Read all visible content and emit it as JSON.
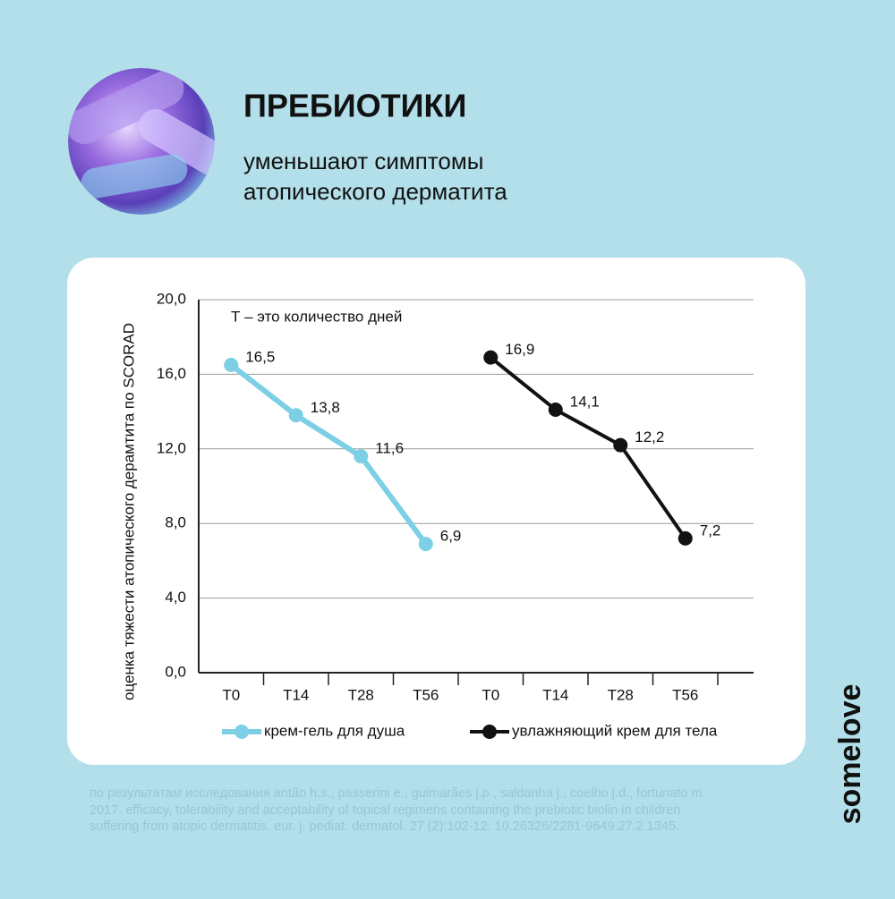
{
  "header": {
    "title": "ПРЕБИОТИКИ",
    "subtitle": [
      "уменьшают симптомы",
      "атопического дерматита"
    ]
  },
  "chart_data": {
    "type": "line",
    "annotation": "Т – это количество дней",
    "y_label": "оценка тяжести атопического дерамтита по SCORAD",
    "categories": [
      "T0",
      "T14",
      "T28",
      "T56",
      "T0",
      "T14",
      "T28",
      "T56"
    ],
    "series": [
      {
        "name": "крем-гель для душа",
        "color": "#7dcfe6",
        "values": [
          16.5,
          13.8,
          11.6,
          6.9,
          null,
          null,
          null,
          null
        ],
        "value_labels": [
          "16,5",
          "13,8",
          "11,6",
          "6,9",
          null,
          null,
          null,
          null
        ]
      },
      {
        "name": "увлажняющий крем для тела",
        "color": "#111111",
        "values": [
          null,
          null,
          null,
          null,
          16.9,
          14.1,
          12.2,
          7.2
        ],
        "value_labels": [
          null,
          null,
          null,
          null,
          "16,9",
          "14,1",
          "12,2",
          "7,2"
        ]
      }
    ],
    "ylim": [
      0,
      20
    ],
    "yticks": [
      {
        "value": 0,
        "label": "0,0"
      },
      {
        "value": 4,
        "label": "4,0"
      },
      {
        "value": 8,
        "label": "8,0"
      },
      {
        "value": 12,
        "label": "12,0"
      },
      {
        "value": 16,
        "label": "16,0"
      },
      {
        "value": 20,
        "label": "20,0"
      }
    ],
    "grid": true,
    "legend": "bottom"
  },
  "footer": {
    "lines": [
      "по результатам исследования antão h.s., passerini e., guimarães j.p., saldanha j., coelho j.d., fortunato m.",
      "2017. efficacy, tolerability and acceptability of topical regimens containing the prebiotic biolin in children",
      "suffering from atopic dermatitis. eur. j. pediat. dermatol. 27 (2):102-12. 10.26326/2281-9649.27.2.1345."
    ]
  },
  "brand": "somelove"
}
